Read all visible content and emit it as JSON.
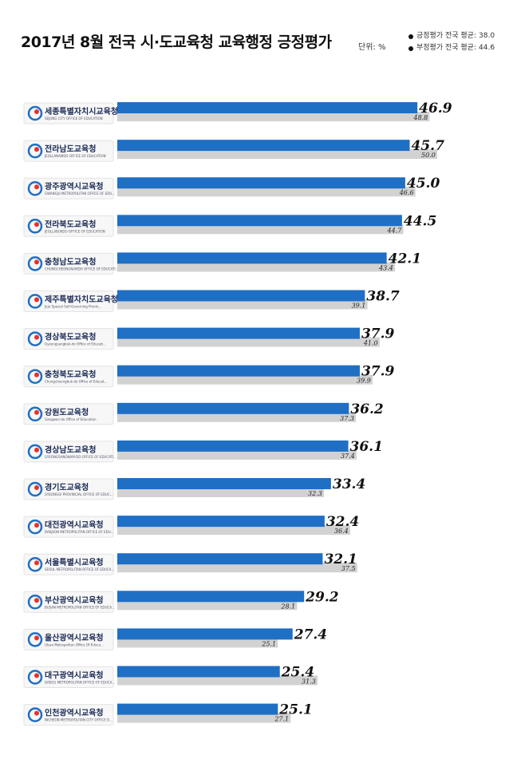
{
  "title": "2017년 8월 전국 시·도교육청 교육행정 긍정평가",
  "unit": "단위: %",
  "legend": [
    {
      "label": "긍정평가 전국 평균:",
      "value": "38.0"
    },
    {
      "label": "부정평가 전국 평균:",
      "value": "44.6"
    }
  ],
  "chart_data": {
    "type": "bar",
    "orientation": "horizontal",
    "categories": [
      "세종특별자치시교육청",
      "전라남도교육청",
      "광주광역시교육청",
      "전라북도교육청",
      "충청남도교육청",
      "제주특별자치도교육청",
      "경상북도교육청",
      "충청북도교육청",
      "강원도교육청",
      "경상남도교육청",
      "경기도교육청",
      "대전광역시교육청",
      "서울특별시교육청",
      "부산광역시교육청",
      "울산광역시교육청",
      "대구광역시교육청",
      "인천광역시교육청"
    ],
    "subtitles": [
      "SEJONG CITY OFFICE OF EDUCATION",
      "JEOLLANAMDO OFFICE OF EDUCATION",
      "GWANGJU METROPOLITAN OFFICE OF EDUCATION",
      "JEOLLABUKDO OFFICE OF EDUCATION",
      "CHUNGCHEONGNAMDO OFFICE OF EDUCATION",
      "Jeju Special Self-Governing Provincial Office of Education",
      "Gyeongsangbuk-do Office of Education",
      "Chungcheongbuk-do Office of Education",
      "Gangwon-do Office of Education",
      "GYEONGSANGNAM-DO OFFICE OF EDUCATION",
      "GYEONGGI PROVINCIAL OFFICE OF EDUCATION",
      "DAEJEON METROPOLITAN OFFICE OF EDUCATION",
      "SEOUL METROPOLITAN OFFICE OF EDUCATION",
      "BUSAN METROPOLITAN OFFICE OF EDUCATION",
      "Ulsan Metropolitan Office Of Education",
      "DAEGU METROPOLITAN OFFICE OF EDUCATION",
      "INCHEON METROPOLITAN CITY OFFICE OF EDUCATION"
    ],
    "series": [
      {
        "name": "긍정평가",
        "color": "#1f6fc5",
        "values": [
          46.9,
          45.7,
          45.0,
          44.5,
          42.1,
          38.7,
          37.9,
          37.9,
          36.2,
          36.1,
          33.4,
          32.4,
          32.1,
          29.2,
          27.4,
          25.4,
          25.1
        ]
      },
      {
        "name": "부정평가",
        "color": "#d2d2d2",
        "values": [
          48.8,
          50.0,
          46.6,
          44.7,
          43.4,
          39.1,
          41.0,
          39.9,
          37.3,
          37.4,
          32.3,
          36.4,
          37.5,
          28.1,
          25.1,
          31.3,
          27.1
        ]
      }
    ],
    "label_format": "0.0",
    "axis": "hidden",
    "grid": false
  }
}
